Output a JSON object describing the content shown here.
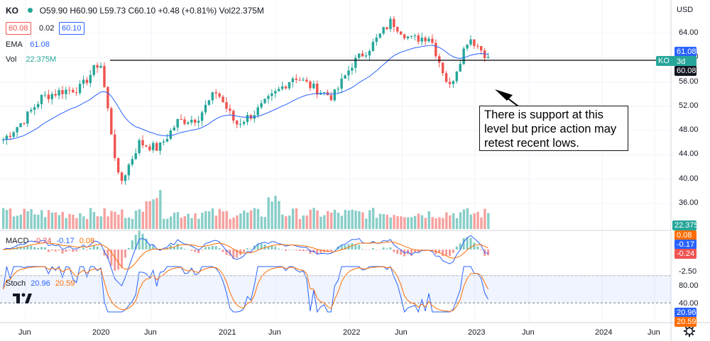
{
  "header": {
    "symbol": "KO",
    "ohlc": "O59.90 H60.90 L59.73 C60.10 +0.48 (+0.81%) Vol22.375M",
    "bid": "60.08",
    "spread": "0.02",
    "ask": "60.10",
    "ema_label": "EMA",
    "ema_value": "61.08",
    "vol_label": "Vol",
    "vol_value": "22.375M",
    "currency": "USD"
  },
  "macd_label": {
    "name": "MACD",
    "v1": "-0.24",
    "v2": "-0.17",
    "v3": "0.08"
  },
  "stoch_label": {
    "name": "Stoch",
    "k": "20.96",
    "d": "20.59"
  },
  "annotation": {
    "text": "There is support at this level but price action may retest recent lows."
  },
  "axis_tags": {
    "ema": "61.08",
    "symbol": "KO",
    "timer": "3d 5h",
    "price": "60.08",
    "volume": "22.375M",
    "macd_hist": "0.08",
    "macd_signal": "-0.17",
    "macd_line": "-0.24",
    "stoch_k": "20.96",
    "stoch_d": "20.59"
  },
  "price_ticks": [
    "64.00",
    "60.00",
    "56.00",
    "52.00",
    "48.00",
    "44.00",
    "40.00",
    "36.00"
  ],
  "macd_ticks": [
    "-2.50"
  ],
  "stoch_ticks": [
    "80.00",
    "40.00"
  ],
  "x_ticks": [
    "Jun",
    "2020",
    "Jun",
    "2021",
    "Jun",
    "2022",
    "Jun",
    "2023",
    "Jun",
    "2024",
    "Jun"
  ],
  "colors": {
    "up": "#26a69a",
    "down": "#ef5350",
    "ema": "#2962ff",
    "macd_line": "#2962ff",
    "signal_line": "#ff6d00",
    "stoch_k": "#2962ff",
    "stoch_d": "#ff6d00",
    "support": "#000000"
  },
  "icons": [
    "tradingview-logo-icon",
    "settings-gear-icon"
  ],
  "chart_data": [
    {
      "type": "candlestick",
      "title": "KO",
      "ylabel": "USD",
      "ylim": [
        36,
        70
      ],
      "x": [
        "2019-04",
        "2019-06",
        "2019-08",
        "2019-10",
        "2019-12",
        "2020-02",
        "2020-03",
        "2020-04",
        "2020-06",
        "2020-08",
        "2020-10",
        "2020-12",
        "2021-01",
        "2021-03",
        "2021-05",
        "2021-07",
        "2021-09",
        "2021-11",
        "2022-01",
        "2022-03",
        "2022-04",
        "2022-06",
        "2022-08",
        "2022-10",
        "2022-12",
        "2023-02"
      ],
      "close": [
        46.5,
        49.5,
        53.5,
        54.5,
        55.0,
        59.5,
        39.0,
        46.0,
        45.0,
        49.5,
        50.0,
        54.5,
        49.0,
        51.0,
        54.0,
        57.0,
        55.0,
        53.5,
        59.0,
        62.0,
        66.0,
        63.0,
        63.5,
        55.0,
        63.5,
        60.1
      ],
      "series": [
        {
          "name": "EMA",
          "last": 61.08
        }
      ],
      "support_level": 60.08,
      "annotation": "There is support at this level but price action may retest recent lows."
    },
    {
      "type": "bar",
      "title": "Vol",
      "last": "22.375M"
    },
    {
      "type": "line",
      "title": "MACD",
      "ylim": [
        -3,
        2
      ],
      "series": [
        {
          "name": "MACD",
          "last": -0.24
        },
        {
          "name": "Signal",
          "last": -0.17
        },
        {
          "name": "Histogram",
          "last": 0.08
        }
      ]
    },
    {
      "type": "line",
      "title": "Stoch",
      "ylim": [
        0,
        100
      ],
      "series": [
        {
          "name": "%K",
          "last": 20.96
        },
        {
          "name": "%D",
          "last": 20.59
        }
      ]
    }
  ]
}
